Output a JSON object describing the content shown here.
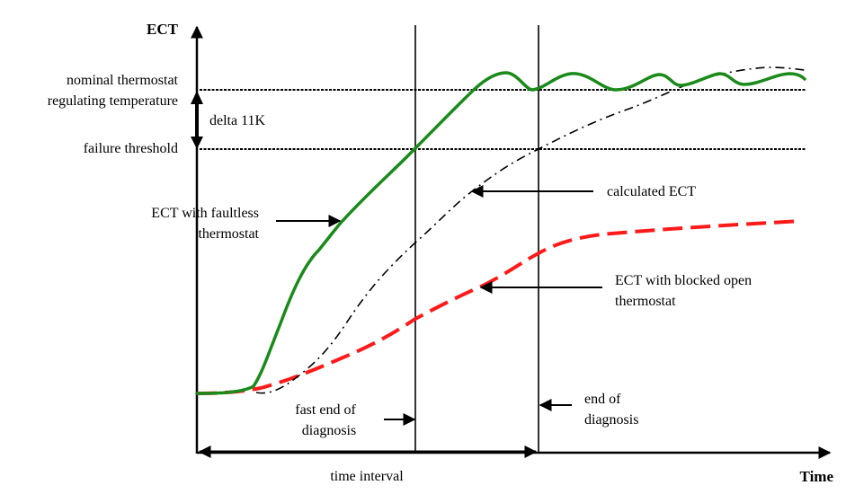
{
  "axes": {
    "y_label": "ECT",
    "x_label": "Time"
  },
  "levels": {
    "nominal_label_line1": "nominal thermostat",
    "nominal_label_line2": "regulating temperature",
    "failure_label": "failure threshold",
    "delta_label": "delta 11K"
  },
  "annotations": {
    "faultless_line1": "ECT with faultless",
    "faultless_line2": "thermostat",
    "calculated": "calculated ECT",
    "blocked_line1": "ECT with blocked open",
    "blocked_line2": "thermostat",
    "fast_end_line1": "fast end of",
    "fast_end_line2": "diagnosis",
    "end_line1": "end of",
    "end_line2": "diagnosis",
    "time_interval": "time interval"
  },
  "colors": {
    "faultless": "#1a8a1a",
    "blocked": "#ff1a1a",
    "calculated": "#000000",
    "axis": "#000000"
  },
  "series": [
    {
      "name": "ECT with faultless thermostat",
      "style": "solid",
      "colorKey": "faultless"
    },
    {
      "name": "calculated ECT",
      "style": "dash-dot",
      "colorKey": "calculated"
    },
    {
      "name": "ECT with blocked open thermostat",
      "style": "dashed",
      "colorKey": "blocked"
    }
  ]
}
